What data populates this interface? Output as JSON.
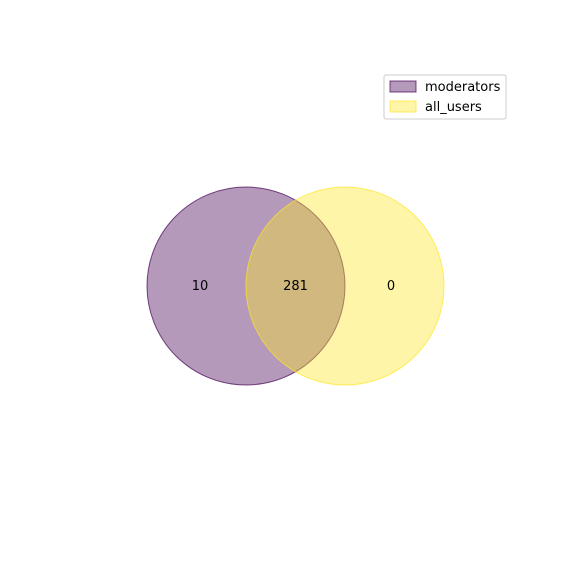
{
  "chart_data": {
    "type": "venn",
    "sets": [
      {
        "name": "moderators",
        "color": "#440154",
        "alpha": 0.4
      },
      {
        "name": "all_users",
        "color": "#fde725",
        "alpha": 0.4
      }
    ],
    "regions": {
      "moderators_only": "10",
      "intersection": "281",
      "all_users_only": "0"
    },
    "legend": {
      "position": "top-right",
      "entries": [
        "moderators",
        "all_users"
      ]
    }
  }
}
